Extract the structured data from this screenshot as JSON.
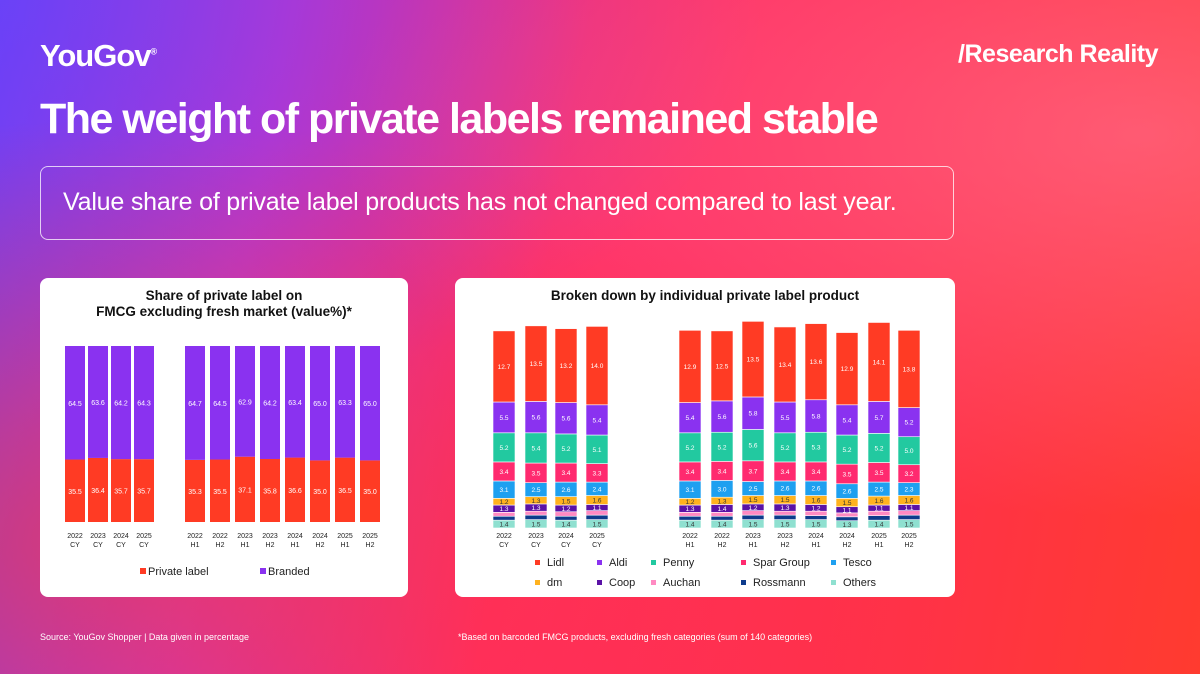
{
  "header": {
    "logo": "YouGov",
    "logo_mark": "®",
    "tagline": "/Research Reality",
    "title": "The weight of private labels remained stable",
    "subtitle": "Value share of private label products has not changed compared to last year."
  },
  "colors": {
    "private_label": "#ff3b24",
    "branded": "#8a32f0",
    "lidl": "#ff3b24",
    "aldi": "#8a32f0",
    "penny": "#22c9a0",
    "spar": "#ff2a6f",
    "tesco": "#1ea0f0",
    "dm": "#ffb21e",
    "coop": "#5a12a6",
    "auchan": "#ff8ac2",
    "rossmann": "#0e3b8c",
    "others": "#8fe0d0"
  },
  "chart_data": [
    {
      "type": "bar",
      "stacked": true,
      "title": "Share of private label on FMCG excluding fresh market (value%)*",
      "title_lines": [
        "Share of private label on",
        "FMCG excluding fresh market (value%)*"
      ],
      "categories": [
        [
          "2022",
          "CY"
        ],
        [
          "2023",
          "CY"
        ],
        [
          "2024",
          "CY"
        ],
        [
          "2025",
          "CY"
        ],
        [
          "2022",
          "H1"
        ],
        [
          "2022",
          "H2"
        ],
        [
          "2023",
          "H1"
        ],
        [
          "2023",
          "H2"
        ],
        [
          "2024",
          "H1"
        ],
        [
          "2024",
          "H2"
        ],
        [
          "2025",
          "H1"
        ],
        [
          "2025",
          "H2"
        ]
      ],
      "series": [
        {
          "name": "Private label",
          "color_key": "private_label",
          "values": [
            35.5,
            36.4,
            35.7,
            35.7,
            35.3,
            35.5,
            37.1,
            35.8,
            36.6,
            35.0,
            36.5,
            35.0
          ]
        },
        {
          "name": "Branded",
          "color_key": "branded",
          "values": [
            64.5,
            63.6,
            64.2,
            64.3,
            64.7,
            64.5,
            62.9,
            64.2,
            63.4,
            65.0,
            63.3,
            65.0
          ]
        }
      ],
      "legend": [
        "Private label",
        "Branded"
      ],
      "legend_position": "bottom"
    },
    {
      "type": "bar",
      "stacked": true,
      "title": "Broken down by individual private label product",
      "categories": [
        [
          "2022",
          "CY"
        ],
        [
          "2023",
          "CY"
        ],
        [
          "2024",
          "CY"
        ],
        [
          "2025",
          "CY"
        ],
        [
          "2022",
          "H1"
        ],
        [
          "2022",
          "H2"
        ],
        [
          "2023",
          "H1"
        ],
        [
          "2023",
          "H2"
        ],
        [
          "2024",
          "H1"
        ],
        [
          "2024",
          "H2"
        ],
        [
          "2025",
          "H1"
        ],
        [
          "2025",
          "H2"
        ]
      ],
      "series": [
        {
          "name": "Others",
          "color_key": "others",
          "values": [
            1.4,
            1.5,
            1.4,
            1.5,
            1.4,
            1.4,
            1.5,
            1.5,
            1.5,
            1.3,
            1.4,
            1.5
          ]
        },
        {
          "name": "Rossmann",
          "color_key": "rossmann",
          "values": [
            0.7,
            0.8,
            0.7,
            0.8,
            0.7,
            0.7,
            0.8,
            0.8,
            0.7,
            0.7,
            0.8,
            0.8
          ]
        },
        {
          "name": "Auchan",
          "color_key": "auchan",
          "values": [
            0.7,
            0.7,
            0.8,
            0.8,
            0.7,
            0.7,
            0.8,
            0.7,
            0.8,
            0.7,
            0.8,
            0.8
          ]
        },
        {
          "name": "Coop",
          "color_key": "coop",
          "values": [
            1.3,
            1.3,
            1.2,
            1.1,
            1.3,
            1.4,
            1.2,
            1.3,
            1.2,
            1.1,
            1.1,
            1.1
          ]
        },
        {
          "name": "dm",
          "color_key": "dm",
          "values": [
            1.2,
            1.3,
            1.5,
            1.6,
            1.2,
            1.3,
            1.5,
            1.5,
            1.6,
            1.5,
            1.6,
            1.6
          ]
        },
        {
          "name": "Tesco",
          "color_key": "tesco",
          "values": [
            3.1,
            2.5,
            2.6,
            2.4,
            3.1,
            3.0,
            2.5,
            2.6,
            2.6,
            2.6,
            2.5,
            2.3
          ]
        },
        {
          "name": "Spar Group",
          "color_key": "spar",
          "values": [
            3.4,
            3.5,
            3.4,
            3.3,
            3.4,
            3.4,
            3.7,
            3.4,
            3.4,
            3.5,
            3.5,
            3.2
          ]
        },
        {
          "name": "Penny",
          "color_key": "penny",
          "values": [
            5.2,
            5.4,
            5.2,
            5.1,
            5.2,
            5.2,
            5.6,
            5.2,
            5.3,
            5.2,
            5.2,
            5.0
          ]
        },
        {
          "name": "Aldi",
          "color_key": "aldi",
          "values": [
            5.5,
            5.6,
            5.6,
            5.4,
            5.4,
            5.6,
            5.8,
            5.5,
            5.8,
            5.4,
            5.7,
            5.2
          ]
        },
        {
          "name": "Lidl",
          "color_key": "lidl",
          "values": [
            12.7,
            13.5,
            13.2,
            14.0,
            12.9,
            12.5,
            13.5,
            13.4,
            13.6,
            12.9,
            14.1,
            13.8
          ]
        }
      ],
      "label_series": [
        "Lidl",
        "Aldi",
        "Penny",
        "Spar Group",
        "Tesco",
        "dm",
        "Coop",
        "Others"
      ],
      "legend": [
        [
          "Lidl",
          "Aldi",
          "Penny",
          "Spar Group",
          "Tesco"
        ],
        [
          "dm",
          "Coop",
          "Auchan",
          "Rossmann",
          "Others"
        ]
      ],
      "legend_position": "bottom"
    }
  ],
  "footer": {
    "source": "Source: YouGov Shopper | Data given in percentage",
    "note": "*Based on barcoded FMCG products, excluding fresh categories (sum of 140 categories)"
  }
}
